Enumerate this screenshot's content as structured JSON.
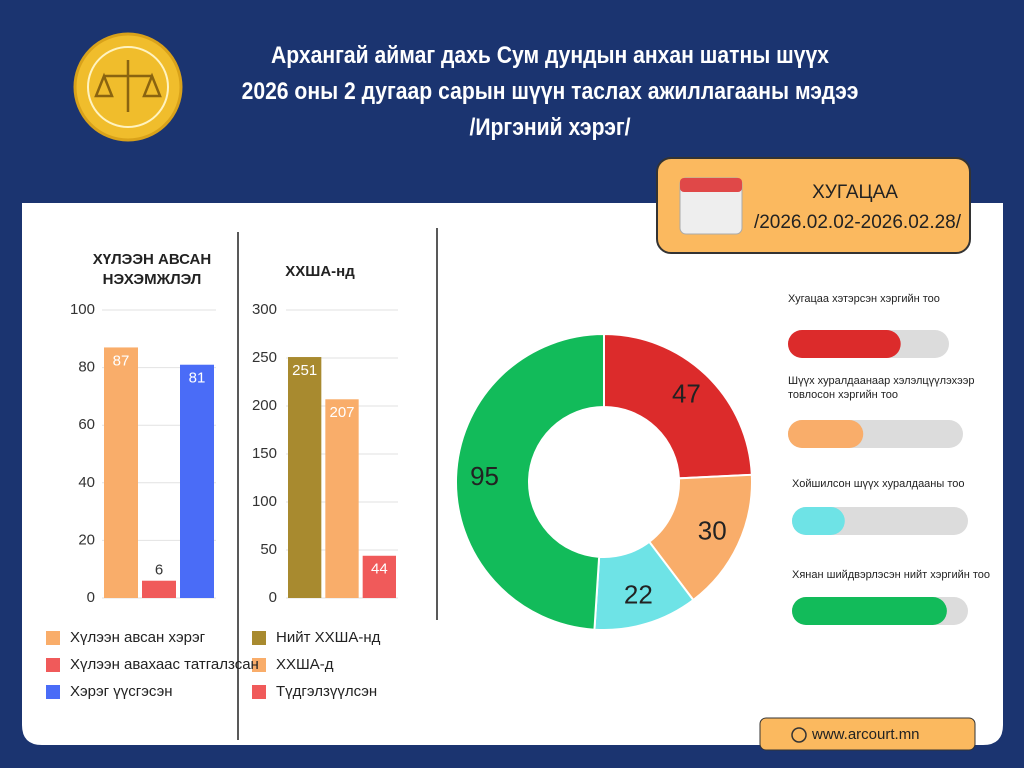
{
  "header": {
    "title": [
      "Архангай аймаг дахь Сум дундын анхан шатны шүүх",
      "2026 оны 2 дугаар сарын шүүн таслах ажиллагааны мэдээ",
      "/Иргэний хэрэг/"
    ]
  },
  "period": {
    "label": "ХУГАЦАА",
    "range": "/2026.02.02-2026.02.28/"
  },
  "footer": {
    "website": "www.arcourt.mn"
  },
  "chart_data": [
    {
      "type": "bar",
      "title": "ХҮЛЭЭН АВСАН НЭХЭМЖЛЭЛ",
      "categories": [
        "Хүлээн авсан хэрэг",
        "Хүлээн авахаас татгалзсан",
        "Хэрэг үүсгэсэн"
      ],
      "values": [
        87,
        6,
        81
      ],
      "colors": [
        "#f9ad6a",
        "#f05a5a",
        "#4a6cf7"
      ],
      "ylim": [
        0,
        100
      ],
      "yticks": [
        0,
        20,
        40,
        60,
        80,
        100
      ],
      "grid": true
    },
    {
      "type": "bar",
      "title": "ХХША-нд",
      "categories": [
        "Нийт ХХША-нд",
        "ХХША-д",
        "Түдгэлзүүлсэн"
      ],
      "values": [
        251,
        207,
        44
      ],
      "colors": [
        "#a88a2f",
        "#f9ad6a",
        "#f05a5a"
      ],
      "ylim": [
        0,
        300
      ],
      "yticks": [
        0,
        50,
        100,
        150,
        200,
        250,
        300
      ],
      "grid": true
    },
    {
      "type": "donut",
      "categories": [
        "Хугацаа хэтэрсэн хэргийн тоо",
        "Шүүх хуралдаанаар хэлэлцүүлэхээр товлосон хэргийн тоо",
        "Хойшилсон шүүх хуралдааны тоо",
        "Хянан шийдвэрлэсэн нийт хэргийн тоо"
      ],
      "values": [
        47,
        30,
        22,
        95
      ],
      "colors": [
        "#dc2b2b",
        "#f9ad6a",
        "#6ee3e6",
        "#12bb5a"
      ]
    }
  ]
}
